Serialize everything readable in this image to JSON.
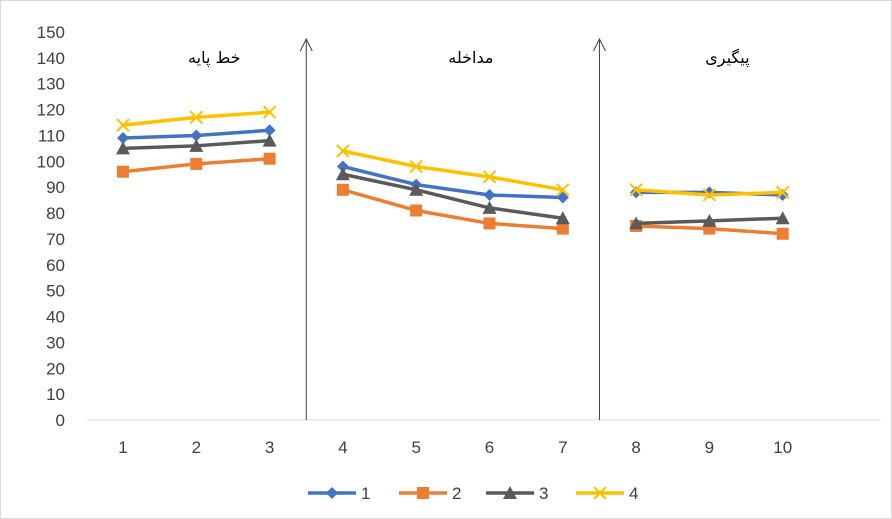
{
  "chart_data": {
    "type": "line",
    "x": [
      "1",
      "2",
      "3",
      "4",
      "5",
      "6",
      "7",
      "8",
      "9",
      "10"
    ],
    "ylim": [
      0,
      150
    ],
    "yticks": [
      0,
      10,
      20,
      30,
      40,
      50,
      60,
      70,
      80,
      90,
      100,
      110,
      120,
      130,
      140,
      150
    ],
    "grid": false,
    "legend_position": "bottom",
    "phases": [
      {
        "label": "خط پایه",
        "x_range": [
          1,
          3
        ]
      },
      {
        "label": "مداخله",
        "x_range": [
          4,
          7
        ]
      },
      {
        "label": "پیگیری",
        "x_range": [
          8,
          10
        ]
      }
    ],
    "phase_divider_after_x": [
      3,
      7
    ],
    "series": [
      {
        "name": "1",
        "color": "#4472c4",
        "marker": "diamond",
        "values": [
          109,
          110,
          112,
          98,
          91,
          87,
          86,
          88,
          88,
          87
        ]
      },
      {
        "name": "2",
        "color": "#ed7d31",
        "marker": "square",
        "values": [
          96,
          99,
          101,
          89,
          81,
          76,
          74,
          75,
          74,
          72
        ]
      },
      {
        "name": "3",
        "color": "#5a5a5a",
        "marker": "triangle",
        "values": [
          105,
          106,
          108,
          95,
          89,
          82,
          78,
          76,
          77,
          78
        ]
      },
      {
        "name": "4",
        "color": "#ffc000",
        "marker": "x",
        "values": [
          114,
          117,
          119,
          104,
          98,
          94,
          89,
          89,
          87,
          88
        ]
      }
    ]
  }
}
